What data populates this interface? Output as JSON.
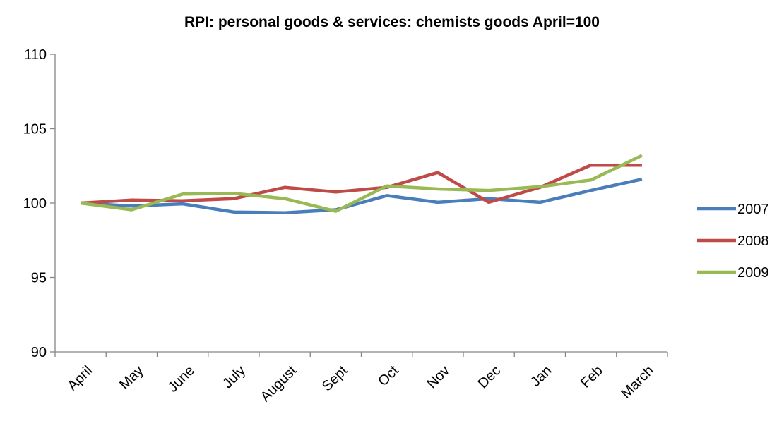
{
  "chart_data": {
    "type": "line",
    "title": "RPI: personal goods & services: chemists goods  April=100",
    "xlabel": "",
    "ylabel": "",
    "categories": [
      "April",
      "May",
      "June",
      "July",
      "August",
      "Sept",
      "Oct",
      "Nov",
      "Dec",
      "Jan",
      "Feb",
      "March"
    ],
    "ylim": [
      90,
      110
    ],
    "yticks": [
      90,
      95,
      100,
      105,
      110
    ],
    "grid": false,
    "legend_position": "right",
    "series": [
      {
        "name": "2007",
        "color": "#4a7ebb",
        "values": [
          100.0,
          99.8,
          99.95,
          99.4,
          99.35,
          99.55,
          100.5,
          100.05,
          100.3,
          100.05,
          100.85,
          101.6
        ]
      },
      {
        "name": "2008",
        "color": "#be4b48",
        "values": [
          100.0,
          100.2,
          100.15,
          100.3,
          101.05,
          100.75,
          101.05,
          102.05,
          100.05,
          101.05,
          102.55,
          102.55
        ]
      },
      {
        "name": "2009",
        "color": "#98b954",
        "values": [
          100.0,
          99.55,
          100.6,
          100.65,
          100.3,
          99.45,
          101.15,
          100.95,
          100.85,
          101.1,
          101.55,
          103.2
        ]
      }
    ]
  }
}
